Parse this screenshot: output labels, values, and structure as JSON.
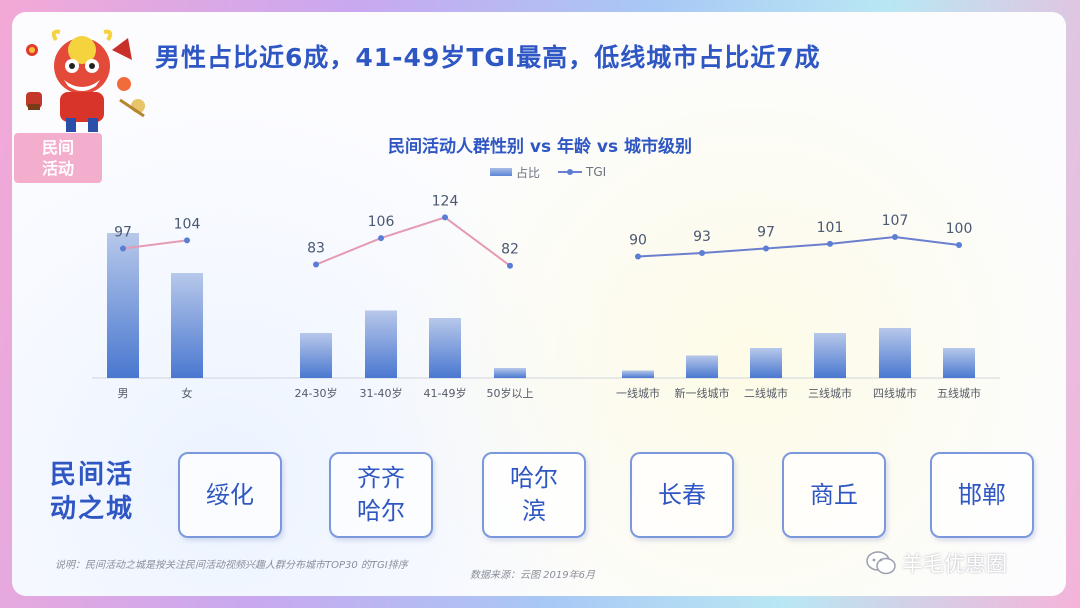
{
  "headline": "男性占比近6成，41-49岁TGI最高，低线城市占比近7成",
  "badge": "民间\n活动",
  "chart_data": {
    "type": "bar",
    "title": "民间活动人群性别 vs 年龄 vs 城市级别",
    "legend": [
      "占比",
      "TGI"
    ],
    "groups": [
      {
        "categories": [
          "男",
          "女"
        ],
        "share": [
          58,
          42
        ],
        "tgi": [
          97,
          104
        ],
        "line_color": "#e59bb3"
      },
      {
        "categories": [
          "24-30岁",
          "31-40岁",
          "41-49岁",
          "50岁以上"
        ],
        "share": [
          18,
          27,
          24,
          4
        ],
        "tgi": [
          83,
          106,
          124,
          82
        ],
        "line_color": "#e59bb3"
      },
      {
        "categories": [
          "一线城市",
          "新一线城市",
          "二线城市",
          "三线城市",
          "四线城市",
          "五线城市"
        ],
        "share": [
          3,
          9,
          12,
          18,
          20,
          12
        ],
        "tgi": [
          90,
          93,
          97,
          101,
          107,
          100
        ],
        "line_color": "#6b7fcf"
      }
    ]
  },
  "section_label": "民间活\n动之城",
  "cities": [
    "绥化",
    "齐齐\n哈尔",
    "哈尔\n滨",
    "长春",
    "商丘",
    "邯郸"
  ],
  "footnote": "说明：民间活动之城是按关注民间活动视频兴趣人群分布城市TOP30 的TGI排序",
  "source": "数据来源：云图  2019年6月",
  "watermark": "羊毛优惠圈",
  "colors": {
    "accent": "#2f57c4",
    "badge": "#f3aecd"
  }
}
